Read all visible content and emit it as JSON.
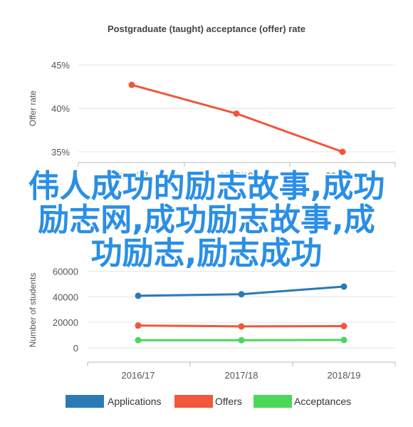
{
  "chart_data": [
    {
      "type": "line",
      "title": "Postgraduate (taught) acceptance (offer) rate",
      "ylabel": "Offer rate",
      "categories": [
        "2016/17",
        "2017/18",
        "2018/19"
      ],
      "yticks": [
        "35%",
        "40%",
        "45%"
      ],
      "ylim": [
        33.5,
        47
      ],
      "series": [
        {
          "values": [
            42.7,
            39.4,
            35.0
          ],
          "color": "#f0573b"
        }
      ],
      "legend": "none"
    },
    {
      "type": "line",
      "ylabel": "Number of students",
      "categories": [
        "2016/17",
        "2017/18",
        "2018/19"
      ],
      "yticks": [
        "0",
        "20000",
        "40000",
        "60000"
      ],
      "ylim": [
        0,
        60000
      ],
      "series": [
        {
          "name": "Applications",
          "values": [
            40800,
            42000,
            48000
          ],
          "color": "#2a7ab7"
        },
        {
          "name": "Offers",
          "values": [
            17500,
            16800,
            17000
          ],
          "color": "#f0573b"
        },
        {
          "name": "Acceptances",
          "values": [
            6000,
            6000,
            6200
          ],
          "color": "#4cd65a"
        }
      ],
      "legend": "bottom-center"
    }
  ],
  "overlay": {
    "lines": [
      "伟人成功的励志故事,成功",
      "励志网,成功励志故事,成",
      "功励志,励志成功"
    ],
    "color": "#2a8fe6"
  }
}
